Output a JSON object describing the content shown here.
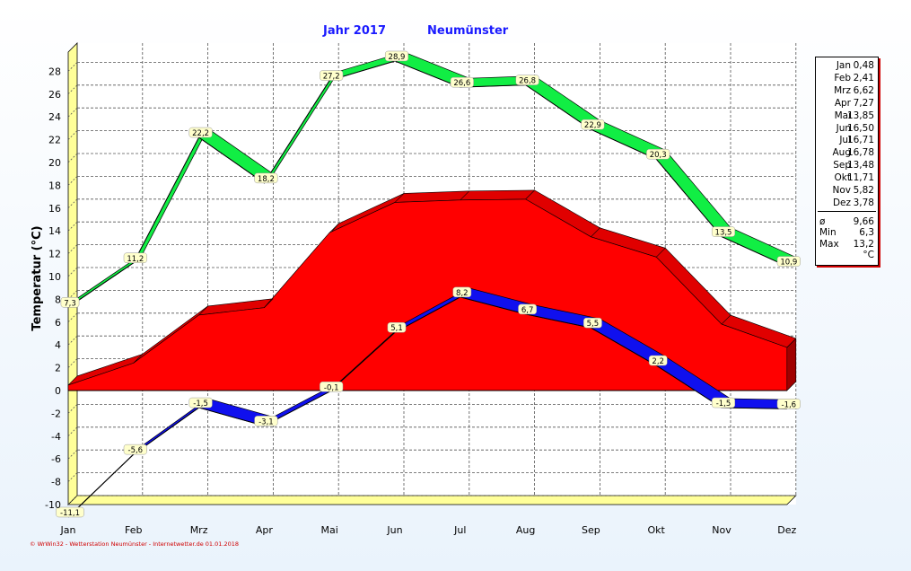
{
  "title": {
    "year_label": "Jahr  2017",
    "location": "Neumünster"
  },
  "footer": "© WrWin32 - Wetterstation Neumünster - Internetwetter.de  01.01.2018",
  "colors": {
    "max_band": "#11ee44",
    "mean_area": "#ff0000",
    "min_band": "#1010ee",
    "title": "#1a1aff"
  },
  "legend": {
    "months": [
      {
        "label": "Jan",
        "value": "0,48"
      },
      {
        "label": "Feb",
        "value": "2,41"
      },
      {
        "label": "Mrz",
        "value": "6,62"
      },
      {
        "label": "Apr",
        "value": "7,27"
      },
      {
        "label": "Mai",
        "value": "13,85"
      },
      {
        "label": "Jun",
        "value": "16,50"
      },
      {
        "label": "Jul",
        "value": "16,71"
      },
      {
        "label": "Aug",
        "value": "16,78"
      },
      {
        "label": "Sep",
        "value": "13,48"
      },
      {
        "label": "Okt",
        "value": "11,71"
      },
      {
        "label": "Nov",
        "value": "5,82"
      },
      {
        "label": "Dez",
        "value": "3,78"
      }
    ],
    "stats": [
      {
        "label": "ø",
        "value": "9,66"
      },
      {
        "label": "Min",
        "value": "6,3"
      },
      {
        "label": "Max",
        "value": "13,2"
      },
      {
        "label": "",
        "value": "°C"
      }
    ]
  },
  "chart_data": {
    "type": "area",
    "categories": [
      "Jan",
      "Feb",
      "Mrz",
      "Apr",
      "Mai",
      "Jun",
      "Jul",
      "Aug",
      "Sep",
      "Okt",
      "Nov",
      "Dez"
    ],
    "ylabel": "Temperatur  (°C)",
    "ylim": [
      -10,
      29
    ],
    "yticks": [
      -10,
      -8,
      -6,
      -4,
      -2,
      0,
      2,
      4,
      6,
      8,
      10,
      12,
      14,
      16,
      18,
      20,
      22,
      24,
      26,
      28
    ],
    "grid": true,
    "series": [
      {
        "values": [
          7.3,
          11.2,
          22.2,
          18.2,
          27.2,
          28.9,
          26.6,
          26.8,
          22.9,
          20.3,
          13.5,
          10.9
        ],
        "labels": [
          "7,3",
          "11,2",
          "22,2",
          "18,2",
          "27,2",
          "28,9",
          "26,6",
          "26,8",
          "22,9",
          "20,3",
          "13,5",
          "10,9"
        ]
      },
      {
        "values": [
          0.48,
          2.41,
          6.62,
          7.27,
          13.85,
          16.5,
          16.71,
          16.78,
          13.48,
          11.71,
          5.82,
          3.78
        ]
      },
      {
        "values": [
          -11.1,
          -5.6,
          -1.5,
          -3.1,
          -0.1,
          5.1,
          8.2,
          6.7,
          5.5,
          2.2,
          -1.5,
          -1.6
        ],
        "labels": [
          "-11,1",
          "-5,6",
          "-1,5",
          "-3,1",
          "-0,1",
          "5,1",
          "8,2",
          "6,7",
          "5,5",
          "2,2",
          "-1,5",
          "-1,6"
        ]
      }
    ]
  }
}
